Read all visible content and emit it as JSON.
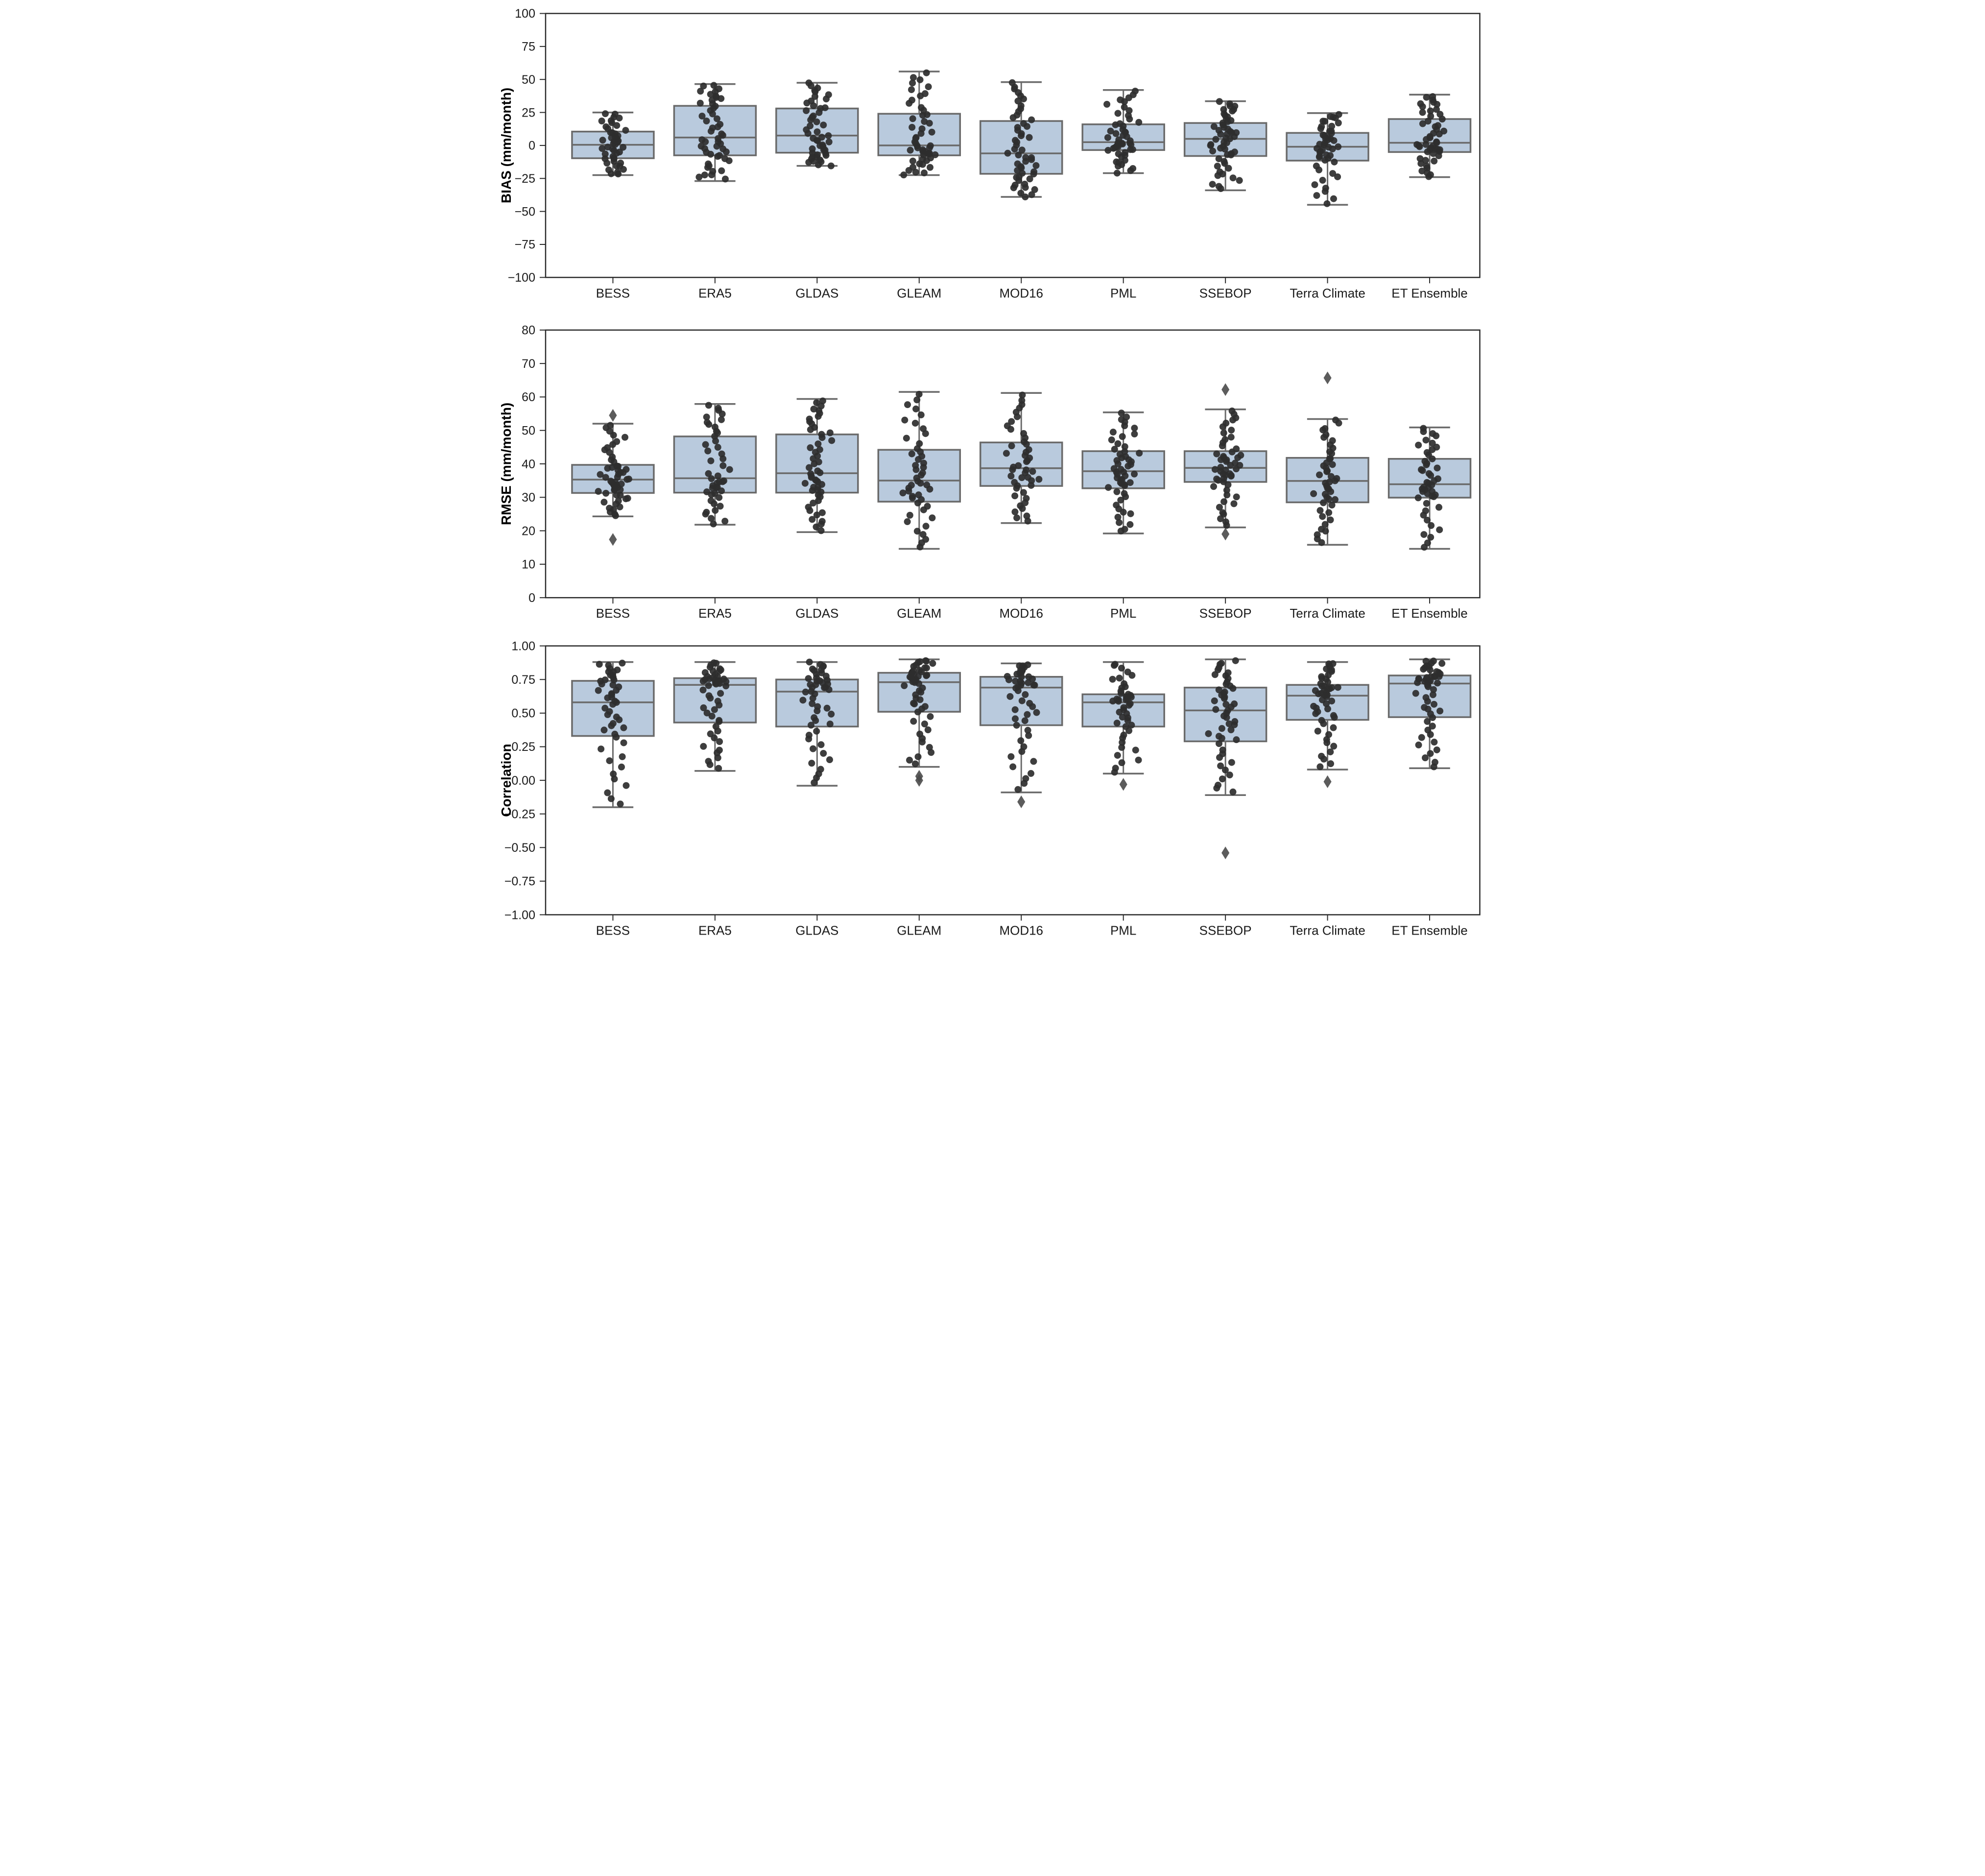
{
  "figure": {
    "background": "#ffffff",
    "colors": {
      "box_fill": "#b9cadd",
      "box_edge": "#6a6a6a",
      "whisker": "#6a6a6a",
      "median": "#6a6a6a",
      "point": "#2e2e2e",
      "outlier": "#4a4a4a",
      "frame": "#2b2b2b",
      "tick_text": "#1a1a1a"
    }
  },
  "chart_data": [
    {
      "type": "box",
      "ylabel": "BIAS (mm/month)",
      "ylim": [
        -100,
        100
      ],
      "yticks": [
        "100",
        "75",
        "50",
        "25",
        "0",
        "−25",
        "−50",
        "−75",
        "−100"
      ],
      "grid": false,
      "legend": "none",
      "points_per_group": "approx. 50 jittered observations per product (strip plot overlay)",
      "categories": [
        "BESS",
        "ERA5",
        "GLDAS",
        "GLEAM",
        "MOD16",
        "PML",
        "SSEBOP",
        "Terra Climate",
        "ET Ensemble"
      ],
      "groups": [
        {
          "category": "BESS",
          "whisker_low": -22.5,
          "q1": -9.7,
          "median": 0.5,
          "q3": 10.5,
          "whisker_high": 25.0,
          "outliers": []
        },
        {
          "category": "ERA5",
          "whisker_low": -27.0,
          "q1": -7.5,
          "median": 6.0,
          "q3": 30.0,
          "whisker_high": 46.5,
          "outliers": []
        },
        {
          "category": "GLDAS",
          "whisker_low": -15.5,
          "q1": -5.5,
          "median": 7.5,
          "q3": 28.0,
          "whisker_high": 47.5,
          "outliers": []
        },
        {
          "category": "GLEAM",
          "whisker_low": -22.5,
          "q1": -7.5,
          "median": 0.0,
          "q3": 24.0,
          "whisker_high": 56.0,
          "outliers": []
        },
        {
          "category": "MOD16",
          "whisker_low": -39.0,
          "q1": -21.5,
          "median": -6.0,
          "q3": 18.5,
          "whisker_high": 48.0,
          "outliers": []
        },
        {
          "category": "PML",
          "whisker_low": -21.0,
          "q1": -3.5,
          "median": 2.5,
          "q3": 16.0,
          "whisker_high": 42.0,
          "outliers": []
        },
        {
          "category": "SSEBOP",
          "whisker_low": -34.0,
          "q1": -8.0,
          "median": 5.0,
          "q3": 17.0,
          "whisker_high": 33.5,
          "outliers": []
        },
        {
          "category": "Terra Climate",
          "whisker_low": -45.0,
          "q1": -11.5,
          "median": -1.0,
          "q3": 9.5,
          "whisker_high": 24.5,
          "outliers": []
        },
        {
          "category": "ET Ensemble",
          "whisker_low": -24.0,
          "q1": -5.0,
          "median": 2.0,
          "q3": 20.0,
          "whisker_high": 38.5,
          "outliers": []
        }
      ]
    },
    {
      "type": "box",
      "ylabel": "RMSE (mm/month)",
      "ylim": [
        0,
        80
      ],
      "yticks": [
        "80",
        "70",
        "60",
        "50",
        "40",
        "30",
        "20",
        "10",
        "0"
      ],
      "grid": false,
      "legend": "none",
      "points_per_group": "approx. 50 jittered observations per product (strip plot overlay)",
      "categories": [
        "BESS",
        "ERA5",
        "GLDAS",
        "GLEAM",
        "MOD16",
        "PML",
        "SSEBOP",
        "Terra Climate",
        "ET Ensemble"
      ],
      "groups": [
        {
          "category": "BESS",
          "whisker_low": 24.3,
          "q1": 31.3,
          "median": 35.3,
          "q3": 39.7,
          "whisker_high": 52.0,
          "outliers": [
            54.5,
            17.4
          ]
        },
        {
          "category": "ERA5",
          "whisker_low": 21.8,
          "q1": 31.4,
          "median": 35.7,
          "q3": 48.2,
          "whisker_high": 57.9,
          "outliers": []
        },
        {
          "category": "GLDAS",
          "whisker_low": 19.6,
          "q1": 31.4,
          "median": 37.2,
          "q3": 48.8,
          "whisker_high": 59.4,
          "outliers": []
        },
        {
          "category": "GLEAM",
          "whisker_low": 14.6,
          "q1": 28.7,
          "median": 35.0,
          "q3": 44.2,
          "whisker_high": 61.5,
          "outliers": []
        },
        {
          "category": "MOD16",
          "whisker_low": 22.3,
          "q1": 33.4,
          "median": 38.7,
          "q3": 46.4,
          "whisker_high": 61.2,
          "outliers": []
        },
        {
          "category": "PML",
          "whisker_low": 19.2,
          "q1": 32.7,
          "median": 37.8,
          "q3": 43.8,
          "whisker_high": 55.4,
          "outliers": []
        },
        {
          "category": "SSEBOP",
          "whisker_low": 21.0,
          "q1": 34.6,
          "median": 38.8,
          "q3": 43.8,
          "whisker_high": 56.3,
          "outliers": [
            62.2,
            19.0
          ]
        },
        {
          "category": "Terra Climate",
          "whisker_low": 15.8,
          "q1": 28.5,
          "median": 34.9,
          "q3": 41.8,
          "whisker_high": 53.4,
          "outliers": [
            65.7
          ]
        },
        {
          "category": "ET Ensemble",
          "whisker_low": 14.6,
          "q1": 29.9,
          "median": 33.9,
          "q3": 41.5,
          "whisker_high": 50.9,
          "outliers": []
        }
      ]
    },
    {
      "type": "box",
      "ylabel": "Correlation",
      "ylim": [
        -1.0,
        1.0
      ],
      "yticks": [
        "1.00",
        "0.75",
        "0.50",
        "0.25",
        "0.00",
        "−0.25",
        "−0.50",
        "−0.75",
        "−1.00"
      ],
      "grid": false,
      "legend": "none",
      "points_per_group": "approx. 50 jittered observations per product (strip plot overlay)",
      "categories": [
        "BESS",
        "ERA5",
        "GLDAS",
        "GLEAM",
        "MOD16",
        "PML",
        "SSEBOP",
        "Terra Climate",
        "ET Ensemble"
      ],
      "groups": [
        {
          "category": "BESS",
          "whisker_low": -0.2,
          "q1": 0.33,
          "median": 0.58,
          "q3": 0.74,
          "whisker_high": 0.88,
          "outliers": []
        },
        {
          "category": "ERA5",
          "whisker_low": 0.07,
          "q1": 0.43,
          "median": 0.71,
          "q3": 0.76,
          "whisker_high": 0.88,
          "outliers": []
        },
        {
          "category": "GLDAS",
          "whisker_low": -0.04,
          "q1": 0.4,
          "median": 0.66,
          "q3": 0.75,
          "whisker_high": 0.88,
          "outliers": []
        },
        {
          "category": "GLEAM",
          "whisker_low": 0.1,
          "q1": 0.51,
          "median": 0.73,
          "q3": 0.8,
          "whisker_high": 0.9,
          "outliers": [
            0.03,
            0.0
          ]
        },
        {
          "category": "MOD16",
          "whisker_low": -0.09,
          "q1": 0.41,
          "median": 0.69,
          "q3": 0.77,
          "whisker_high": 0.87,
          "outliers": [
            -0.16
          ]
        },
        {
          "category": "PML",
          "whisker_low": 0.05,
          "q1": 0.4,
          "median": 0.58,
          "q3": 0.64,
          "whisker_high": 0.88,
          "outliers": [
            -0.03
          ]
        },
        {
          "category": "SSEBOP",
          "whisker_low": -0.11,
          "q1": 0.29,
          "median": 0.52,
          "q3": 0.69,
          "whisker_high": 0.9,
          "outliers": [
            -0.54
          ]
        },
        {
          "category": "Terra Climate",
          "whisker_low": 0.08,
          "q1": 0.45,
          "median": 0.63,
          "q3": 0.71,
          "whisker_high": 0.88,
          "outliers": [
            -0.01
          ]
        },
        {
          "category": "ET Ensemble",
          "whisker_low": 0.09,
          "q1": 0.47,
          "median": 0.72,
          "q3": 0.78,
          "whisker_high": 0.9,
          "outliers": []
        }
      ]
    }
  ]
}
